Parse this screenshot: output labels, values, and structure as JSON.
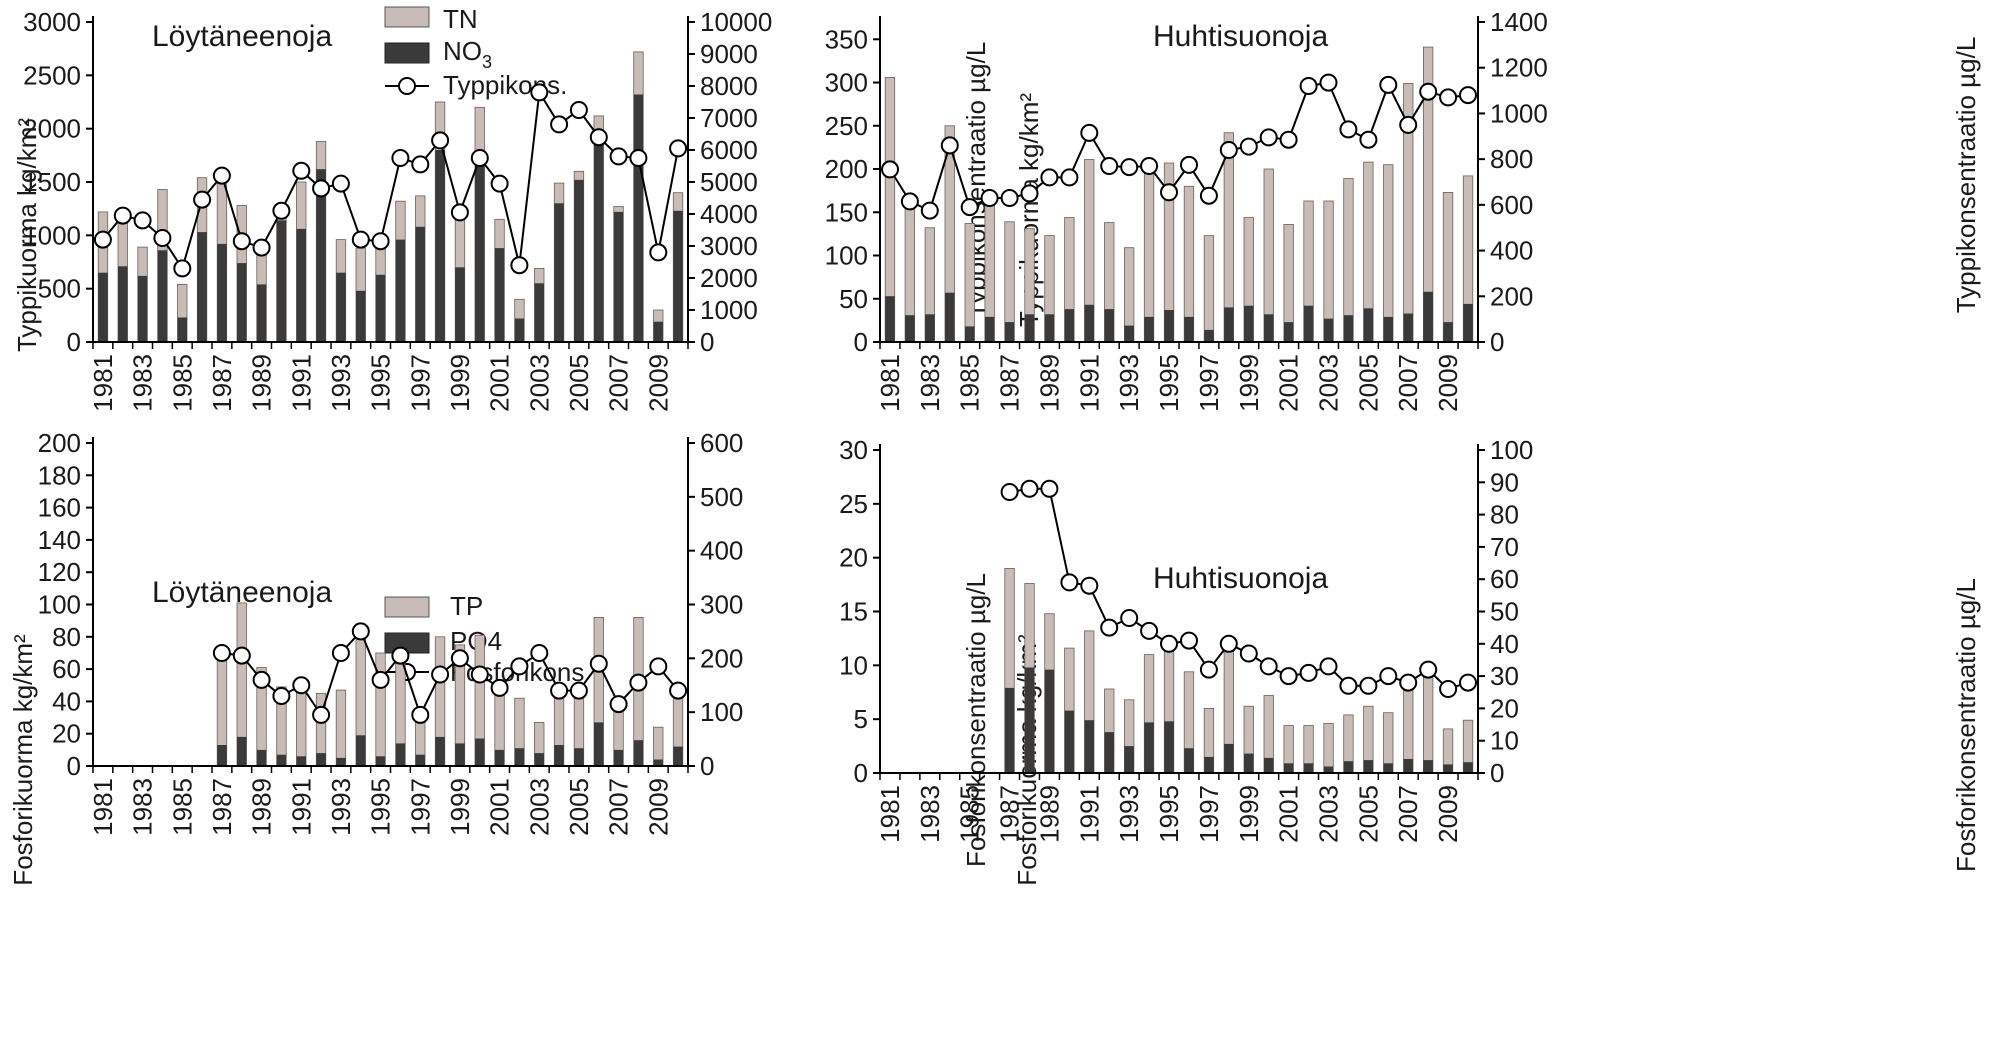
{
  "colors": {
    "total": "#c9bcb6",
    "dissolved": "#3a3a3a",
    "line": "#000000",
    "marker_fill": "#ffffff"
  },
  "chart_data": [
    {
      "id": "n-loytaneenoja",
      "type": "bar",
      "title": "Löytäneenoja",
      "ylabel": "Typpikuorma kg/km²",
      "y2label": "Typpikonsentraatio µg/L",
      "ylim": [
        0,
        3000
      ],
      "yticks": [
        "0",
        "500",
        "1000",
        "1500",
        "2000",
        "2500",
        "3000"
      ],
      "y2lim": [
        0,
        10000
      ],
      "y2ticks": [
        "0",
        "1000",
        "2000",
        "3000",
        "4000",
        "5000",
        "6000",
        "7000",
        "8000",
        "9000",
        "10000"
      ],
      "legend": [
        "TN",
        "NO3",
        "Typpikons."
      ],
      "categories": [
        1981,
        1982,
        1983,
        1984,
        1985,
        1986,
        1987,
        1988,
        1989,
        1990,
        1991,
        1992,
        1993,
        1994,
        1995,
        1996,
        1997,
        1998,
        1999,
        2000,
        2001,
        2002,
        2003,
        2004,
        2005,
        2006,
        2007,
        2008,
        2009,
        2010
      ],
      "xtick_labels": [
        "1981",
        "1983",
        "1985",
        "1987",
        "1989",
        "1991",
        "1993",
        "1995",
        "1997",
        "1999",
        "2001",
        "2003",
        "2005",
        "2007",
        "2009"
      ],
      "series": [
        {
          "name": "TN",
          "kind": "bar",
          "values": [
            1220,
            1140,
            890,
            1430,
            540,
            1540,
            1600,
            1280,
            920,
            1250,
            1500,
            1880,
            960,
            880,
            910,
            1320,
            1370,
            2250,
            1240,
            2200,
            1150,
            400,
            690,
            1490,
            1600,
            2120,
            1270,
            2720,
            300,
            1400
          ]
        },
        {
          "name": "NO3",
          "kind": "bar",
          "values": [
            650,
            710,
            620,
            860,
            230,
            1030,
            920,
            740,
            540,
            1140,
            1060,
            1620,
            650,
            480,
            630,
            960,
            1080,
            1800,
            700,
            1700,
            880,
            220,
            550,
            1300,
            1520,
            1940,
            1220,
            2320,
            190,
            1230
          ]
        },
        {
          "name": "Typpikons.",
          "kind": "line",
          "axis": "right",
          "values": [
            3200,
            3950,
            3800,
            3250,
            2300,
            4450,
            5200,
            3150,
            2950,
            4100,
            5350,
            4800,
            4950,
            3200,
            3150,
            5750,
            5550,
            6300,
            4050,
            5750,
            4950,
            2400,
            7800,
            6800,
            7250,
            6400,
            5800,
            5750,
            2800,
            6050
          ]
        }
      ]
    },
    {
      "id": "n-huhtisuonoja",
      "type": "bar",
      "title": "Huhtisuonoja",
      "ylabel": "Typpikuorma kg/km²",
      "y2label": "Typpikonsentraatio µg/L",
      "ylim": [
        0,
        370
      ],
      "yticks": [
        "0",
        "50",
        "100",
        "150",
        "200",
        "250",
        "300",
        "350"
      ],
      "y2lim": [
        0,
        1400
      ],
      "y2ticks": [
        "0",
        "200",
        "400",
        "600",
        "800",
        "1000",
        "1200",
        "1400"
      ],
      "legend": [],
      "categories": [
        1981,
        1982,
        1983,
        1984,
        1985,
        1986,
        1987,
        1988,
        1989,
        1990,
        1991,
        1992,
        1993,
        1994,
        1995,
        1996,
        1997,
        1998,
        1999,
        2000,
        2001,
        2002,
        2003,
        2004,
        2005,
        2006,
        2007,
        2008,
        2009,
        2010
      ],
      "xtick_labels": [
        "1981",
        "1983",
        "1985",
        "1987",
        "1989",
        "1991",
        "1993",
        "1995",
        "1997",
        "1999",
        "2001",
        "2003",
        "2005",
        "2007",
        "2009"
      ],
      "series": [
        {
          "name": "TN",
          "kind": "bar",
          "values": [
            306,
            170,
            132,
            250,
            137,
            165,
            139,
            131,
            123,
            144,
            211,
            138,
            109,
            196,
            207,
            180,
            123,
            242,
            144,
            200,
            136,
            163,
            163,
            189,
            208,
            205,
            299,
            341,
            173,
            192
          ]
        },
        {
          "name": "NO3",
          "kind": "bar",
          "values": [
            53,
            31,
            32,
            57,
            18,
            29,
            23,
            32,
            32,
            38,
            43,
            38,
            19,
            29,
            37,
            29,
            14,
            40,
            42,
            32,
            23,
            42,
            27,
            31,
            39,
            29,
            33,
            58,
            23,
            44
          ]
        },
        {
          "name": "Typpikons.",
          "kind": "line",
          "axis": "right",
          "values": [
            755,
            615,
            575,
            860,
            590,
            630,
            630,
            650,
            720,
            720,
            915,
            770,
            765,
            770,
            655,
            775,
            640,
            840,
            855,
            895,
            885,
            1120,
            1135,
            930,
            885,
            1125,
            950,
            1095,
            1070,
            1080
          ]
        }
      ]
    },
    {
      "id": "p-loytaneenoja",
      "type": "bar",
      "title": "Löytäneenoja",
      "ylabel": "Fosforikuorma kg/km²",
      "y2label": "Fosforikonsentraatio µg/L",
      "ylim": [
        0,
        200
      ],
      "yticks": [
        "0",
        "20",
        "40",
        "60",
        "80",
        "100",
        "120",
        "140",
        "160",
        "180",
        "200"
      ],
      "y2lim": [
        0,
        600
      ],
      "y2ticks": [
        "0",
        "100",
        "200",
        "300",
        "400",
        "500",
        "600"
      ],
      "legend": [
        "TP",
        "PO4",
        "Fosforikons"
      ],
      "categories": [
        1981,
        1982,
        1983,
        1984,
        1985,
        1986,
        1987,
        1988,
        1989,
        1990,
        1991,
        1992,
        1993,
        1994,
        1995,
        1996,
        1997,
        1998,
        1999,
        2000,
        2001,
        2002,
        2003,
        2004,
        2005,
        2006,
        2007,
        2008,
        2009,
        2010
      ],
      "xtick_labels": [
        "1981",
        "1983",
        "1985",
        "1987",
        "1989",
        "1991",
        "1993",
        "1995",
        "1997",
        "1999",
        "2001",
        "2003",
        "2005",
        "2007",
        "2009"
      ],
      "series": [
        {
          "name": "TP",
          "kind": "bar",
          "values": [
            null,
            null,
            null,
            null,
            null,
            null,
            72,
            101,
            61,
            49,
            51,
            45,
            47,
            88,
            70,
            64,
            36,
            80,
            75,
            81,
            44,
            42,
            27,
            47,
            42,
            92,
            34,
            92,
            24,
            45
          ]
        },
        {
          "name": "PO4",
          "kind": "bar",
          "values": [
            null,
            null,
            null,
            null,
            null,
            null,
            13,
            18,
            10,
            7,
            6,
            8,
            5,
            19,
            6,
            14,
            7,
            18,
            14,
            17,
            10,
            11,
            8,
            13,
            11,
            27,
            10,
            16,
            4,
            12
          ]
        },
        {
          "name": "Fosforikons",
          "kind": "line",
          "axis": "right",
          "values": [
            null,
            null,
            null,
            null,
            null,
            null,
            210,
            205,
            160,
            130,
            150,
            95,
            210,
            250,
            160,
            205,
            95,
            170,
            200,
            170,
            145,
            185,
            210,
            140,
            140,
            190,
            115,
            155,
            185,
            140
          ]
        }
      ]
    },
    {
      "id": "p-huhtisuonoja",
      "type": "bar",
      "title": "Huhtisuonoja",
      "ylabel": "Fosforikuorma kg/km²",
      "y2label": "Fosforikonsentraatio µg/L",
      "ylim": [
        0,
        30
      ],
      "yticks": [
        "0",
        "5",
        "10",
        "15",
        "20",
        "25",
        "30"
      ],
      "y2lim": [
        0,
        100
      ],
      "y2ticks": [
        "0",
        "10",
        "20",
        "30",
        "40",
        "50",
        "60",
        "70",
        "80",
        "90",
        "100"
      ],
      "legend": [],
      "categories": [
        1981,
        1982,
        1983,
        1984,
        1985,
        1986,
        1987,
        1988,
        1989,
        1990,
        1991,
        1992,
        1993,
        1994,
        1995,
        1996,
        1997,
        1998,
        1999,
        2000,
        2001,
        2002,
        2003,
        2004,
        2005,
        2006,
        2007,
        2008,
        2009,
        2010
      ],
      "xtick_labels": [
        "1981",
        "1983",
        "1985",
        "1987",
        "1989",
        "1991",
        "1993",
        "1995",
        "1997",
        "1999",
        "2001",
        "2003",
        "2005",
        "2007",
        "2009"
      ],
      "series": [
        {
          "name": "TP",
          "kind": "bar",
          "values": [
            null,
            null,
            null,
            null,
            null,
            null,
            19,
            17.6,
            14.8,
            11.6,
            13.2,
            7.8,
            6.8,
            11,
            12.2,
            9.4,
            6,
            11.6,
            6.2,
            7.2,
            4.4,
            4.4,
            4.6,
            5.4,
            6.2,
            5.6,
            8.6,
            9.6,
            4.1,
            4.9
          ]
        },
        {
          "name": "PO4",
          "kind": "bar",
          "values": [
            null,
            null,
            null,
            null,
            null,
            null,
            7.9,
            9.8,
            9.6,
            5.8,
            4.9,
            3.8,
            2.5,
            4.7,
            4.8,
            2.3,
            1.5,
            2.7,
            1.8,
            1.4,
            0.9,
            0.9,
            0.6,
            1.1,
            1.2,
            0.9,
            1.3,
            1.2,
            0.8,
            1.0
          ]
        },
        {
          "name": "Fosforikons",
          "kind": "line",
          "axis": "right",
          "values": [
            null,
            null,
            null,
            null,
            null,
            null,
            87,
            88,
            88,
            59,
            58,
            45,
            48,
            44,
            40,
            41,
            32,
            40,
            37,
            33,
            30,
            31,
            33,
            27,
            27,
            30,
            28,
            32,
            26,
            28
          ]
        }
      ]
    }
  ]
}
